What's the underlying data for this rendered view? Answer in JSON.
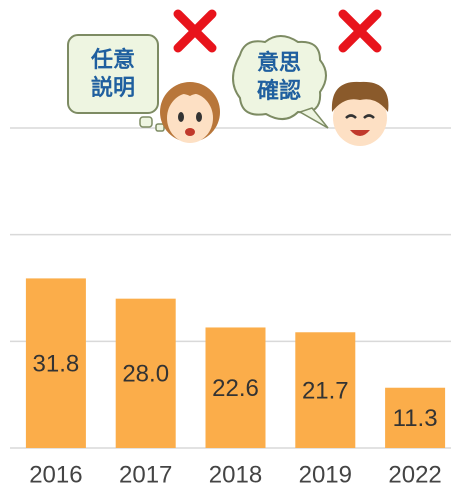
{
  "chart_data": {
    "type": "bar",
    "categories": [
      "2016",
      "2017",
      "2018",
      "2019",
      "2022"
    ],
    "values": [
      31.8,
      28.0,
      22.6,
      21.7,
      11.3
    ],
    "value_labels": [
      "31.8",
      "28.0",
      "22.6",
      "21.7",
      "11.3"
    ],
    "color": "#fbad4a",
    "ylim": [
      0,
      60
    ],
    "yticks": [
      0,
      20,
      40,
      60
    ],
    "grid": true,
    "annotations": [
      [
        "任意",
        "説明"
      ],
      [
        "意思",
        "確認"
      ]
    ]
  }
}
